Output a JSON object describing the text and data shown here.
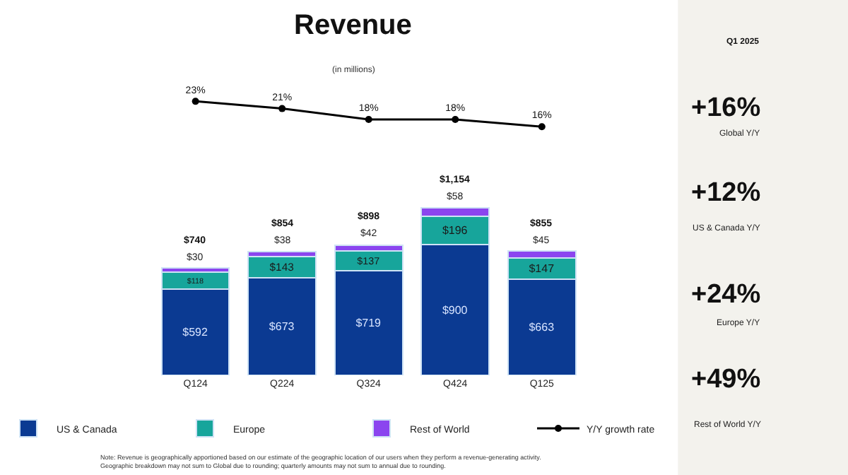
{
  "chart_data": [
    {
      "type": "line",
      "title": "Revenue",
      "subtitle": "(in millions)",
      "categories": [
        "Q124",
        "Q224",
        "Q324",
        "Q424",
        "Q125"
      ],
      "marker": "circle",
      "legend": "bottom",
      "tick_labels": false,
      "series": [
        {
          "name": "Y/Y growth rate",
          "color": "#000000",
          "values": [
            23,
            21,
            18,
            18,
            16
          ],
          "value_labels": [
            "23%",
            "21%",
            "18%",
            "18%",
            "16%"
          ]
        }
      ]
    },
    {
      "type": "bar",
      "stacked": true,
      "categories": [
        "Q124",
        "Q224",
        "Q324",
        "Q424",
        "Q125"
      ],
      "series": [
        {
          "name": "US & Canada",
          "color": "#0b3a92",
          "values": [
            592,
            673,
            719,
            900,
            663
          ],
          "value_labels": [
            "$592",
            "$673",
            "$719",
            "$900",
            "$663"
          ]
        },
        {
          "name": "Europe",
          "color": "#17a59b",
          "values": [
            118,
            143,
            137,
            196,
            147
          ],
          "value_labels": [
            "$118",
            "$143",
            "$137",
            "$196",
            "$147"
          ]
        },
        {
          "name": "Rest of World",
          "color": "#8b45ef",
          "values": [
            30,
            38,
            42,
            58,
            45
          ],
          "value_labels": [
            "$30",
            "$38",
            "$42",
            "$58",
            "$45"
          ]
        }
      ],
      "totals": [
        "$740",
        "$854",
        "$898",
        "$1,154",
        "$855"
      ],
      "legend": "bottom",
      "tick_labels": "x",
      "annotations": [
        "Note: Revenue is geographically apportioned based on our estimate of the geographic location of our users when they perform a revenue-generating activity.\nGeographic breakdown may not sum to Global due to rounding; quarterly amounts may not sum to annual due to rounding."
      ]
    },
    {
      "type": "other",
      "title": "Q1 2025",
      "annotations": [
        "+16%",
        "Global Y/Y",
        "+12%",
        "US & Canada Y/Y",
        "+24%",
        "Europe Y/Y",
        "+49%",
        "Rest of World Y/Y"
      ]
    }
  ]
}
